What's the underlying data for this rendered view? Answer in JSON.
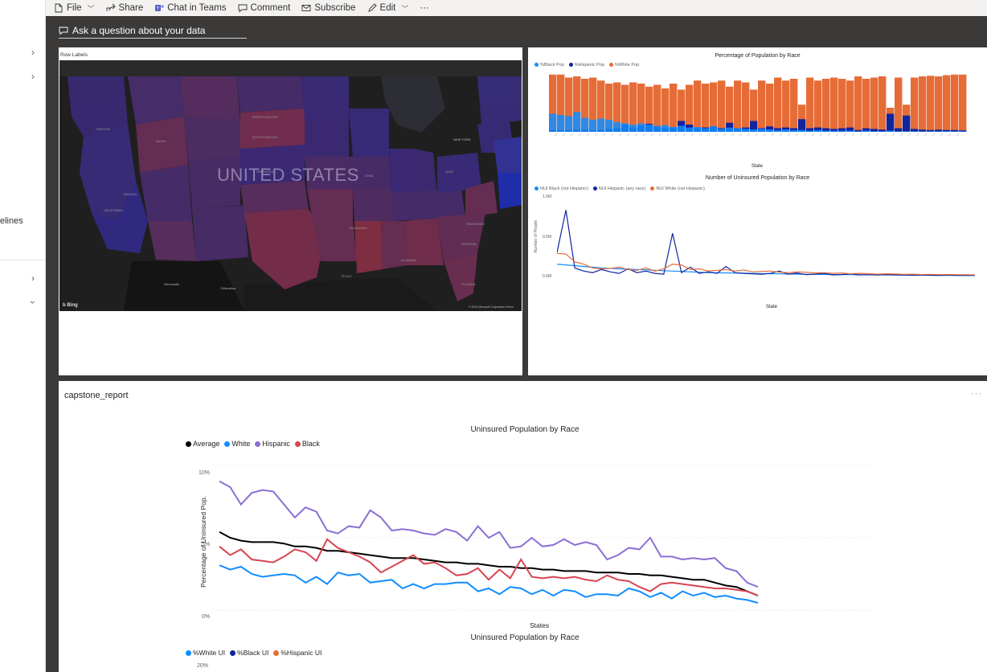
{
  "menubar": {
    "items": [
      {
        "label": "File",
        "icon": "file-icon",
        "dropdown": true
      },
      {
        "label": "Share",
        "icon": "share-icon",
        "dropdown": false
      },
      {
        "label": "Chat in Teams",
        "icon": "teams-icon",
        "dropdown": false
      },
      {
        "label": "Comment",
        "icon": "comment-icon",
        "dropdown": false
      },
      {
        "label": "Subscribe",
        "icon": "mail-icon",
        "dropdown": false
      },
      {
        "label": "Edit",
        "icon": "pencil-icon",
        "dropdown": true
      }
    ],
    "more": "···"
  },
  "leftnav": {
    "truncated_text": "elines"
  },
  "qna": {
    "label": "Ask a question about your data"
  },
  "map_tile": {
    "field_label": "Row Labels",
    "country_label": "UNITED STATES",
    "bing": "b Bing",
    "copyright": "© 2020 Microsoft Corporation Terms"
  },
  "chart_data": [
    {
      "type": "area",
      "title": "Percentage of Population by Race",
      "xlabel": "State",
      "ylabel": "",
      "series": [
        {
          "name": "%Black Pop",
          "color": "#118dff"
        },
        {
          "name": "%Hispanic Pop",
          "color": "#12239e"
        },
        {
          "name": "%White Pop",
          "color": "#e66c37"
        }
      ]
    },
    {
      "type": "line",
      "title": "Number of Uninsured Population by Race",
      "xlabel": "State",
      "ylabel": "Number of People",
      "yticks": [
        "1.0M",
        "0.5M",
        "0.0M"
      ],
      "ylim": [
        0,
        1000000
      ],
      "series": [
        {
          "name": "NUI Black (not Hispanic)",
          "color": "#118dff",
          "values": [
            150000,
            140000,
            130000,
            120000,
            110000,
            100000,
            95000,
            90000,
            85000,
            80000,
            75000,
            70000,
            65000,
            60000,
            55000,
            50000,
            45000,
            40000,
            38000,
            36000,
            34000,
            32000,
            30000,
            28000,
            26000,
            24000,
            22000,
            20000,
            19000,
            18000,
            17000,
            16000,
            15000,
            14000,
            13000,
            12000,
            11000,
            10000,
            9000,
            8000,
            7000,
            6000,
            5000,
            4000,
            3500,
            3000,
            2500,
            2000
          ]
        },
        {
          "name": "NUI Hispanic (any race)",
          "color": "#12239e",
          "values": [
            300000,
            850000,
            100000,
            60000,
            40000,
            80000,
            50000,
            30000,
            90000,
            40000,
            60000,
            30000,
            20000,
            550000,
            40000,
            110000,
            30000,
            50000,
            30000,
            120000,
            40000,
            30000,
            25000,
            20000,
            30000,
            60000,
            20000,
            35000,
            15000,
            20000,
            30000,
            10000,
            15000,
            25000,
            10000,
            12000,
            8000,
            15000,
            10000,
            8000,
            6000,
            9000,
            7000,
            5000,
            8000,
            4000,
            6000,
            5000
          ]
        },
        {
          "name": "NUI White (not Hispanic)",
          "color": "#e66c37",
          "values": [
            290000,
            280000,
            180000,
            150000,
            100000,
            90000,
            95000,
            110000,
            80000,
            70000,
            100000,
            60000,
            90000,
            150000,
            140000,
            80000,
            90000,
            60000,
            70000,
            80000,
            60000,
            75000,
            50000,
            55000,
            60000,
            45000,
            40000,
            50000,
            45000,
            35000,
            40000,
            30000,
            35000,
            25000,
            30000,
            28000,
            20000,
            25000,
            22000,
            18000,
            20000,
            15000,
            18000,
            14000,
            16000,
            12000,
            12000,
            10000
          ]
        }
      ]
    },
    {
      "type": "line",
      "title": "Uninsured Population by Race",
      "xlabel": "States",
      "ylabel": "Percentage of Uninsured Pop.",
      "yticks": [
        "10%",
        "5%",
        "0%"
      ],
      "ylim": [
        0,
        10
      ],
      "series": [
        {
          "name": "Average",
          "color": "#000000",
          "values": [
            5.4,
            5.0,
            4.8,
            4.7,
            4.7,
            4.7,
            4.6,
            4.4,
            4.4,
            4.3,
            4.1,
            4.1,
            4.0,
            3.9,
            3.8,
            3.7,
            3.6,
            3.6,
            3.6,
            3.5,
            3.4,
            3.3,
            3.3,
            3.2,
            3.2,
            3.1,
            3.0,
            3.0,
            2.9,
            2.9,
            2.8,
            2.8,
            2.7,
            2.7,
            2.7,
            2.6,
            2.6,
            2.6,
            2.5,
            2.5,
            2.4,
            2.4,
            2.3,
            2.2,
            2.1,
            2.1,
            1.9,
            1.7,
            1.6,
            1.3,
            1.0
          ]
        },
        {
          "name": "White",
          "color": "#118dff",
          "values": [
            3.1,
            2.8,
            3.0,
            2.5,
            2.3,
            2.4,
            2.5,
            2.4,
            1.9,
            2.3,
            1.8,
            2.6,
            2.4,
            2.5,
            1.9,
            2.0,
            2.1,
            1.5,
            1.8,
            1.5,
            1.8,
            1.8,
            1.9,
            1.9,
            1.3,
            1.5,
            1.1,
            1.6,
            1.5,
            1.1,
            1.4,
            1.0,
            1.4,
            1.3,
            0.9,
            1.1,
            1.1,
            1.0,
            1.5,
            1.3,
            0.9,
            1.2,
            0.8,
            1.3,
            1.0,
            1.2,
            0.9,
            1.0,
            0.8,
            0.7,
            0.5
          ]
        },
        {
          "name": "Hispanic",
          "color": "#8b6fd4",
          "values": [
            8.9,
            8.5,
            7.3,
            8.1,
            8.3,
            8.2,
            7.3,
            6.4,
            7.1,
            6.8,
            5.5,
            5.3,
            5.8,
            5.7,
            6.9,
            6.4,
            5.5,
            5.6,
            5.5,
            5.3,
            5.2,
            5.6,
            5.4,
            4.8,
            5.8,
            5.0,
            5.4,
            4.3,
            4.4,
            5.0,
            4.4,
            4.5,
            4.9,
            4.5,
            4.7,
            4.5,
            3.5,
            3.8,
            4.3,
            4.2,
            5.0,
            3.7,
            3.7,
            3.5,
            3.6,
            3.5,
            3.6,
            2.9,
            2.7,
            1.9,
            1.6
          ]
        },
        {
          "name": "Black",
          "color": "#d64550",
          "values": [
            4.4,
            3.8,
            4.2,
            3.5,
            3.4,
            3.3,
            3.7,
            4.2,
            4.0,
            3.4,
            4.9,
            4.3,
            4.0,
            3.7,
            3.3,
            2.6,
            3.0,
            3.4,
            3.8,
            3.2,
            3.3,
            2.9,
            2.4,
            2.5,
            2.9,
            2.1,
            2.8,
            2.2,
            3.5,
            2.3,
            2.2,
            2.3,
            2.2,
            2.3,
            2.1,
            2.0,
            2.4,
            2.1,
            2.0,
            1.6,
            1.3,
            1.8,
            1.9,
            1.8,
            1.7,
            1.6,
            1.5,
            1.5,
            1.4,
            1.3,
            1.0
          ]
        }
      ]
    },
    {
      "type": "line",
      "title": "Uninsured Population by Race",
      "xlabel": "",
      "ylabel": "",
      "yticks": [
        "20%"
      ],
      "series": [
        {
          "name": "%White UI",
          "color": "#118dff"
        },
        {
          "name": "%Black UI",
          "color": "#12239e"
        },
        {
          "name": "%Hispanic UI",
          "color": "#e66c37"
        }
      ]
    }
  ],
  "bottom_tile": {
    "title": "capstone_report",
    "more": "···"
  },
  "colors": {
    "canvas_bg": "#3b3a39",
    "accent_blue": "#118dff",
    "dark_blue": "#12239e",
    "orange": "#e66c37",
    "purple": "#8b6fd4",
    "red": "#d64550"
  }
}
